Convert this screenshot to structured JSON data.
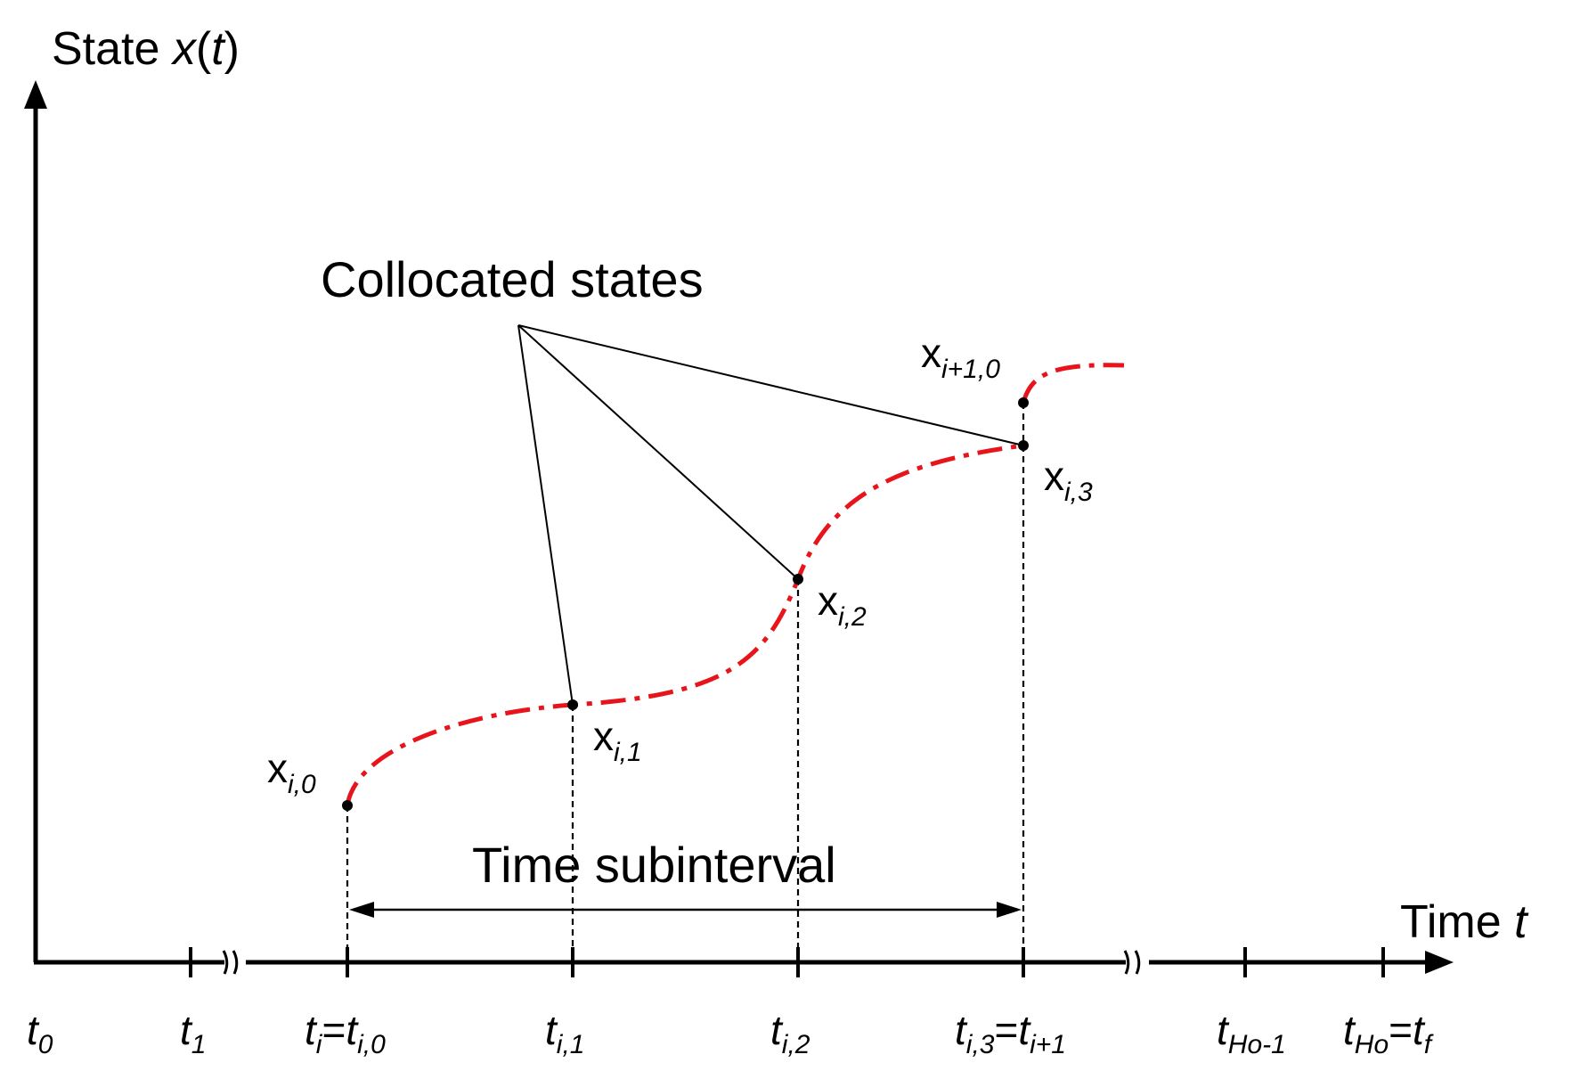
{
  "axes": {
    "y_label_prefix": "State ",
    "y_label_var": "x",
    "y_label_open": "(",
    "y_label_arg": "t",
    "y_label_close": ")",
    "x_label_prefix": "Time ",
    "x_label_var": "t"
  },
  "annotations": {
    "collocated_states": "Collocated states",
    "time_subinterval": "Time subinterval"
  },
  "points": {
    "xi0": {
      "base": "x",
      "sub": "i,0"
    },
    "xi1": {
      "base": "x",
      "sub": "i,1"
    },
    "xi2": {
      "base": "x",
      "sub": "i,2"
    },
    "xi3": {
      "base": "x",
      "sub": "i,3"
    },
    "xi10": {
      "base": "x",
      "sub": "i+1,0"
    }
  },
  "ticks": {
    "t0": {
      "base": "t",
      "sub": "0"
    },
    "t1": {
      "base": "t",
      "sub": "1"
    },
    "ti": {
      "base": "t",
      "sub": "i",
      "eq": "=",
      "base2": "t",
      "sub2": "i,0"
    },
    "ti1": {
      "base": "t",
      "sub": "i,1"
    },
    "ti2": {
      "base": "t",
      "sub": "i,2"
    },
    "ti3": {
      "base": "t",
      "sub": "i,3",
      "eq": "=",
      "base2": "t",
      "sub2": "i+1"
    },
    "tHo1": {
      "base": "t",
      "sub": "Ho-1"
    },
    "tHo": {
      "base": "t",
      "sub": "Ho",
      "eq": "=",
      "base2": "t",
      "sub2": "f"
    }
  },
  "colors": {
    "trajectory": "#e8141b",
    "ink": "#000000"
  }
}
